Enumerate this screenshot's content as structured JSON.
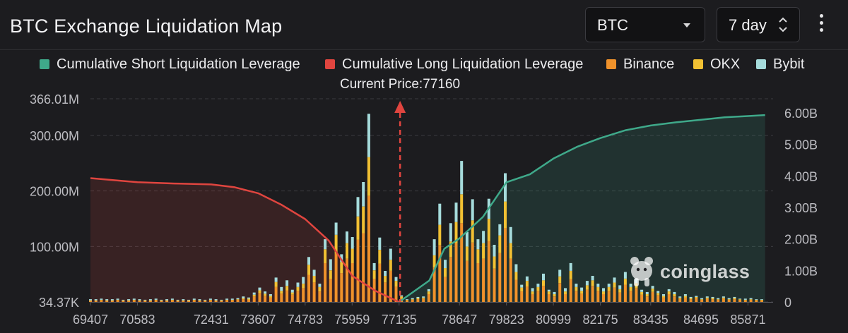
{
  "header": {
    "title": "BTC Exchange Liquidation Map",
    "coin_select": "BTC",
    "range_select": "7 day"
  },
  "legend": [
    {
      "label": "Cumulative Short Liquidation Leverage",
      "color": "#3fa98a"
    },
    {
      "label": "Cumulative Long Liquidation Leverage",
      "color": "#e0453f"
    },
    {
      "label": "Binance",
      "color": "#f0922b"
    },
    {
      "label": "OKX",
      "color": "#f2c133"
    },
    {
      "label": "Bybit",
      "color": "#a6dcdc"
    }
  ],
  "current_price_label": "Current Price:77160",
  "watermark": "coinglass",
  "chart_data": {
    "type": "bar",
    "title": "BTC Exchange Liquidation Map",
    "current_price": 77160,
    "x_ticks": [
      "69407",
      "70583",
      "72431",
      "73607",
      "74783",
      "75959",
      "77135",
      "78647",
      "79823",
      "80999",
      "82175",
      "83435",
      "84695",
      "85871"
    ],
    "x_range": [
      69407,
      86500
    ],
    "y_left_ticks": [
      "34.37K",
      "100.00M",
      "200.00M",
      "300.00M",
      "366.01M"
    ],
    "y_left_range": [
      0.03437,
      366.01
    ],
    "y_left_unit": "M",
    "y_right_ticks": [
      "0",
      "1.00B",
      "2.00B",
      "3.00B",
      "4.00B",
      "5.00B",
      "6.00B"
    ],
    "y_right_range": [
      0,
      6.0
    ],
    "y_right_unit": "B",
    "grid": true,
    "legend_position": "top",
    "colors": {
      "short": "#3fa98a",
      "long": "#e0453f",
      "binance": "#f0922b",
      "okx": "#f2c133",
      "bybit": "#a6dcdc",
      "current_price_marker": "#e0453f"
    },
    "series": [
      {
        "name": "Cumulative Long Liquidation Leverage",
        "type": "area",
        "axis": "right",
        "x": [
          69407,
          70583,
          71507,
          72431,
          73019,
          73607,
          74195,
          74783,
          75371,
          75959,
          76547,
          77135
        ],
        "values": [
          3.93,
          3.8,
          3.76,
          3.73,
          3.64,
          3.45,
          3.08,
          2.63,
          1.95,
          0.83,
          0.35,
          0.0
        ]
      },
      {
        "name": "Cumulative Short Liquidation Leverage",
        "type": "area",
        "axis": "right",
        "x": [
          77135,
          77891,
          78269,
          78647,
          79235,
          79823,
          80411,
          80999,
          81587,
          82175,
          82805,
          83435,
          84065,
          84695,
          85283,
          85871,
          86300
        ],
        "values": [
          0.0,
          0.68,
          1.69,
          2.02,
          2.7,
          3.8,
          4.05,
          4.55,
          4.92,
          5.2,
          5.45,
          5.6,
          5.7,
          5.78,
          5.86,
          5.9,
          5.93
        ]
      }
    ],
    "bars": [
      {
        "x": 69407,
        "binance": 2,
        "okx": 1,
        "bybit": 2
      },
      {
        "x": 69544,
        "binance": 2,
        "okx": 1,
        "bybit": 2
      },
      {
        "x": 69680,
        "binance": 3,
        "okx": 1,
        "bybit": 2
      },
      {
        "x": 69817,
        "binance": 2,
        "okx": 1,
        "bybit": 2
      },
      {
        "x": 69954,
        "binance": 2,
        "okx": 1,
        "bybit": 2
      },
      {
        "x": 70090,
        "binance": 3,
        "okx": 1,
        "bybit": 2
      },
      {
        "x": 70227,
        "binance": 2,
        "okx": 1,
        "bybit": 1
      },
      {
        "x": 70364,
        "binance": 2,
        "okx": 1,
        "bybit": 2
      },
      {
        "x": 70500,
        "binance": 3,
        "okx": 1,
        "bybit": 2
      },
      {
        "x": 70637,
        "binance": 2,
        "okx": 1,
        "bybit": 2
      },
      {
        "x": 70774,
        "binance": 2,
        "okx": 1,
        "bybit": 1
      },
      {
        "x": 70910,
        "binance": 2,
        "okx": 1,
        "bybit": 2
      },
      {
        "x": 71047,
        "binance": 3,
        "okx": 1,
        "bybit": 2
      },
      {
        "x": 71184,
        "binance": 2,
        "okx": 1,
        "bybit": 1
      },
      {
        "x": 71320,
        "binance": 2,
        "okx": 1,
        "bybit": 2
      },
      {
        "x": 71457,
        "binance": 3,
        "okx": 1,
        "bybit": 2
      },
      {
        "x": 71594,
        "binance": 2,
        "okx": 1,
        "bybit": 1
      },
      {
        "x": 71730,
        "binance": 2,
        "okx": 1,
        "bybit": 2
      },
      {
        "x": 71867,
        "binance": 2,
        "okx": 1,
        "bybit": 1
      },
      {
        "x": 72004,
        "binance": 3,
        "okx": 1,
        "bybit": 2
      },
      {
        "x": 72140,
        "binance": 2,
        "okx": 1,
        "bybit": 2
      },
      {
        "x": 72277,
        "binance": 2,
        "okx": 1,
        "bybit": 1
      },
      {
        "x": 72414,
        "binance": 3,
        "okx": 1,
        "bybit": 2
      },
      {
        "x": 72550,
        "binance": 2,
        "okx": 1,
        "bybit": 2
      },
      {
        "x": 72687,
        "binance": 2,
        "okx": 1,
        "bybit": 1
      },
      {
        "x": 72824,
        "binance": 3,
        "okx": 1,
        "bybit": 2
      },
      {
        "x": 72960,
        "binance": 3,
        "okx": 1,
        "bybit": 2
      },
      {
        "x": 73097,
        "binance": 4,
        "okx": 1,
        "bybit": 2
      },
      {
        "x": 73234,
        "binance": 5,
        "okx": 2,
        "bybit": 3
      },
      {
        "x": 73370,
        "binance": 4,
        "okx": 2,
        "bybit": 2
      },
      {
        "x": 73507,
        "binance": 10,
        "okx": 3,
        "bybit": 4
      },
      {
        "x": 73644,
        "binance": 16,
        "okx": 5,
        "bybit": 5
      },
      {
        "x": 73780,
        "binance": 11,
        "okx": 4,
        "bybit": 4
      },
      {
        "x": 73917,
        "binance": 8,
        "okx": 3,
        "bybit": 3
      },
      {
        "x": 74054,
        "binance": 27,
        "okx": 9,
        "bybit": 8
      },
      {
        "x": 74190,
        "binance": 15,
        "okx": 5,
        "bybit": 7
      },
      {
        "x": 74327,
        "binance": 21,
        "okx": 8,
        "bybit": 10
      },
      {
        "x": 74464,
        "binance": 13,
        "okx": 4,
        "bybit": 5
      },
      {
        "x": 74600,
        "binance": 20,
        "okx": 7,
        "bybit": 8
      },
      {
        "x": 74737,
        "binance": 25,
        "okx": 8,
        "bybit": 12
      },
      {
        "x": 74874,
        "binance": 49,
        "okx": 18,
        "bybit": 14
      },
      {
        "x": 75010,
        "binance": 35,
        "okx": 12,
        "bybit": 11
      },
      {
        "x": 75147,
        "binance": 19,
        "okx": 8,
        "bybit": 6
      },
      {
        "x": 75284,
        "binance": 70,
        "okx": 25,
        "bybit": 18
      },
      {
        "x": 75420,
        "binance": 42,
        "okx": 15,
        "bybit": 20
      },
      {
        "x": 75557,
        "binance": 87,
        "okx": 34,
        "bybit": 22
      },
      {
        "x": 75694,
        "binance": 52,
        "okx": 20,
        "bybit": 14
      },
      {
        "x": 75830,
        "binance": 78,
        "okx": 28,
        "bybit": 21
      },
      {
        "x": 75967,
        "binance": 70,
        "okx": 26,
        "bybit": 21
      },
      {
        "x": 76104,
        "binance": 112,
        "okx": 42,
        "bybit": 35
      },
      {
        "x": 76240,
        "binance": 124,
        "okx": 48,
        "bybit": 44
      },
      {
        "x": 76377,
        "binance": 191,
        "okx": 70,
        "bybit": 78
      },
      {
        "x": 76514,
        "binance": 42,
        "okx": 15,
        "bybit": 13
      },
      {
        "x": 76650,
        "binance": 69,
        "okx": 25,
        "bybit": 22
      },
      {
        "x": 76787,
        "binance": 35,
        "okx": 12,
        "bybit": 9
      },
      {
        "x": 76924,
        "binance": 56,
        "okx": 20,
        "bybit": 20
      },
      {
        "x": 77060,
        "binance": 28,
        "okx": 10,
        "bybit": 7
      },
      {
        "x": 77197,
        "binance": 7,
        "okx": 3,
        "bybit": 2
      },
      {
        "x": 77334,
        "binance": 3,
        "okx": 1,
        "bybit": 1
      },
      {
        "x": 77470,
        "binance": 4,
        "okx": 1,
        "bybit": 2
      },
      {
        "x": 77607,
        "binance": 5,
        "okx": 2,
        "bybit": 2
      },
      {
        "x": 77744,
        "binance": 6,
        "okx": 2,
        "bybit": 2
      },
      {
        "x": 77880,
        "binance": 14,
        "okx": 5,
        "bybit": 4
      },
      {
        "x": 78017,
        "binance": 62,
        "okx": 22,
        "bybit": 29
      },
      {
        "x": 78154,
        "binance": 102,
        "okx": 37,
        "bybit": 38
      },
      {
        "x": 78290,
        "binance": 45,
        "okx": 16,
        "bybit": 15
      },
      {
        "x": 78427,
        "binance": 81,
        "okx": 28,
        "bybit": 33
      },
      {
        "x": 78564,
        "binance": 106,
        "okx": 38,
        "bybit": 35
      },
      {
        "x": 78700,
        "binance": 142,
        "okx": 52,
        "bybit": 60
      },
      {
        "x": 78837,
        "binance": 74,
        "okx": 26,
        "bybit": 26
      },
      {
        "x": 78974,
        "binance": 107,
        "okx": 40,
        "bybit": 38
      },
      {
        "x": 79110,
        "binance": 70,
        "okx": 25,
        "bybit": 18
      },
      {
        "x": 79247,
        "binance": 78,
        "okx": 28,
        "bybit": 22
      },
      {
        "x": 79384,
        "binance": 110,
        "okx": 40,
        "bybit": 36
      },
      {
        "x": 79520,
        "binance": 60,
        "okx": 22,
        "bybit": 21
      },
      {
        "x": 79657,
        "binance": 88,
        "okx": 32,
        "bybit": 20
      },
      {
        "x": 79794,
        "binance": 133,
        "okx": 48,
        "bybit": 51
      },
      {
        "x": 79930,
        "binance": 78,
        "okx": 28,
        "bybit": 29
      },
      {
        "x": 80067,
        "binance": 40,
        "okx": 14,
        "bybit": 14
      },
      {
        "x": 80204,
        "binance": 19,
        "okx": 7,
        "bybit": 5
      },
      {
        "x": 80340,
        "binance": 28,
        "okx": 10,
        "bybit": 8
      },
      {
        "x": 80477,
        "binance": 14,
        "okx": 5,
        "bybit": 6
      },
      {
        "x": 80614,
        "binance": 20,
        "okx": 7,
        "bybit": 6
      },
      {
        "x": 80750,
        "binance": 29,
        "okx": 10,
        "bybit": 12
      },
      {
        "x": 80887,
        "binance": 14,
        "okx": 5,
        "bybit": 3
      },
      {
        "x": 81024,
        "binance": 10,
        "okx": 4,
        "bybit": 4
      },
      {
        "x": 81160,
        "binance": 34,
        "okx": 12,
        "bybit": 12
      },
      {
        "x": 81297,
        "binance": 14,
        "okx": 5,
        "bybit": 6
      },
      {
        "x": 81434,
        "binance": 41,
        "okx": 15,
        "bybit": 14
      },
      {
        "x": 81570,
        "binance": 20,
        "okx": 7,
        "bybit": 6
      },
      {
        "x": 81707,
        "binance": 15,
        "okx": 5,
        "bybit": 6
      },
      {
        "x": 81844,
        "binance": 22,
        "okx": 8,
        "bybit": 8
      },
      {
        "x": 81980,
        "binance": 29,
        "okx": 10,
        "bybit": 8
      },
      {
        "x": 82117,
        "binance": 20,
        "okx": 7,
        "bybit": 6
      },
      {
        "x": 82254,
        "binance": 14,
        "okx": 5,
        "bybit": 6
      },
      {
        "x": 82390,
        "binance": 20,
        "okx": 7,
        "bybit": 6
      },
      {
        "x": 82527,
        "binance": 26,
        "okx": 9,
        "bybit": 9
      },
      {
        "x": 82664,
        "binance": 17,
        "okx": 6,
        "bybit": 7
      },
      {
        "x": 82800,
        "binance": 31,
        "okx": 11,
        "bybit": 12
      },
      {
        "x": 82937,
        "binance": 20,
        "okx": 7,
        "bybit": 6
      },
      {
        "x": 83074,
        "binance": 25,
        "okx": 9,
        "bybit": 8
      },
      {
        "x": 83210,
        "binance": 13,
        "okx": 5,
        "bybit": 4
      },
      {
        "x": 83347,
        "binance": 10,
        "okx": 4,
        "bybit": 4
      },
      {
        "x": 83484,
        "binance": 18,
        "okx": 6,
        "bybit": 5
      },
      {
        "x": 83620,
        "binance": 12,
        "okx": 4,
        "bybit": 4
      },
      {
        "x": 83757,
        "binance": 8,
        "okx": 3,
        "bybit": 3
      },
      {
        "x": 83894,
        "binance": 14,
        "okx": 5,
        "bybit": 4
      },
      {
        "x": 84030,
        "binance": 10,
        "okx": 4,
        "bybit": 4
      },
      {
        "x": 84167,
        "binance": 6,
        "okx": 2,
        "bybit": 2
      },
      {
        "x": 84304,
        "binance": 8,
        "okx": 3,
        "bybit": 3
      },
      {
        "x": 84440,
        "binance": 5,
        "okx": 2,
        "bybit": 2
      },
      {
        "x": 84577,
        "binance": 7,
        "okx": 2,
        "bybit": 2
      },
      {
        "x": 84714,
        "binance": 4,
        "okx": 1,
        "bybit": 2
      },
      {
        "x": 84850,
        "binance": 6,
        "okx": 2,
        "bybit": 2
      },
      {
        "x": 84987,
        "binance": 5,
        "okx": 2,
        "bybit": 2
      },
      {
        "x": 85124,
        "binance": 4,
        "okx": 1,
        "bybit": 2
      },
      {
        "x": 85260,
        "binance": 6,
        "okx": 2,
        "bybit": 2
      },
      {
        "x": 85397,
        "binance": 4,
        "okx": 1,
        "bybit": 2
      },
      {
        "x": 85534,
        "binance": 5,
        "okx": 2,
        "bybit": 2
      },
      {
        "x": 85670,
        "binance": 4,
        "okx": 1,
        "bybit": 1
      },
      {
        "x": 85807,
        "binance": 3,
        "okx": 1,
        "bybit": 2
      },
      {
        "x": 85944,
        "binance": 4,
        "okx": 1,
        "bybit": 2
      },
      {
        "x": 86080,
        "binance": 3,
        "okx": 1,
        "bybit": 1
      },
      {
        "x": 86217,
        "binance": 3,
        "okx": 1,
        "bybit": 1
      }
    ]
  }
}
